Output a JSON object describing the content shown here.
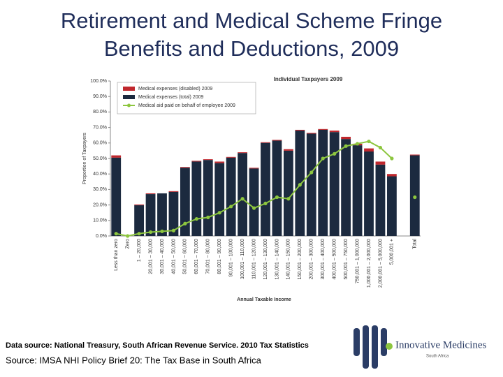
{
  "slide": {
    "title_lines": [
      "Retirement and Medical Scheme Fringe",
      "Benefits and Deductions, 2009"
    ],
    "data_source": "Data source: National Treasury, South African Revenue Service. 2010 Tax Statistics",
    "source": "Source: IMSA NHI Policy Brief 20: The Tax Base in South Africa",
    "logo": {
      "name": "Innovative Medicines",
      "region": "South Africa"
    }
  },
  "chart_data": {
    "type": "bar",
    "title": "Individual Taxpayers 2009",
    "x_label": "Annual Taxable Income",
    "y_label": "Proportion of Taxpayers",
    "categories": [
      "Less than zero",
      "Zero",
      "1 – 20,000",
      "20,001 – 30,000",
      "30,001 – 40,000",
      "40,001 – 50,000",
      "50,001 – 60,000",
      "60,001 – 70,000",
      "70,001 – 80,000",
      "80,001 – 90,000",
      "90,001 – 100,000",
      "100,001 – 110,000",
      "110,001 – 120,000",
      "120,001 – 130,000",
      "130,001 – 140,000",
      "140,001 – 150,000",
      "150,001 – 200,000",
      "200,001 – 300,000",
      "300,001 – 400,000",
      "400,001 – 500,000",
      "500,001 – 750,000",
      "750,001 – 1,000,000",
      "1,000,001 – 2,000,000",
      "2,000,001 – 5,000,000",
      "5,000,001 +",
      null,
      "Total"
    ],
    "series": [
      {
        "name": "Medical expenses (disabled) 2009",
        "color": "#c0272d",
        "kind": "bar",
        "stack_on": 1,
        "values": [
          1.5,
          0,
          0.5,
          0.5,
          0,
          0.5,
          0.5,
          0.5,
          0.5,
          1,
          0.5,
          0.5,
          0.5,
          0.5,
          0.5,
          1,
          0.5,
          0.5,
          0.5,
          1,
          1.5,
          1,
          2,
          2,
          1.5,
          null,
          0.5
        ]
      },
      {
        "name": "Medical expenses (total) 2009",
        "color": "#1c2a3f",
        "kind": "bar",
        "values": [
          50.5,
          0,
          19.8,
          27,
          27.5,
          28.4,
          44,
          48,
          49,
          47,
          50.5,
          53.5,
          43.5,
          60,
          61.5,
          55,
          68,
          66,
          68.5,
          67,
          62.5,
          58.5,
          54.5,
          46,
          38.5,
          null,
          52
        ]
      },
      {
        "name": "Medical aid paid on behalf of employee 2009",
        "color": "#8dc63f",
        "kind": "line",
        "values": [
          1.5,
          0,
          1.5,
          2.5,
          3,
          3.5,
          8,
          11,
          12,
          15,
          19,
          24,
          18,
          21,
          25,
          24,
          33,
          41,
          50,
          53,
          58,
          59.5,
          61,
          57,
          50,
          null,
          25
        ]
      }
    ],
    "ylim": [
      0,
      100
    ],
    "yticks": [
      {
        "value": 0,
        "label": "0.0%"
      },
      {
        "value": 10,
        "label": "10.0%"
      },
      {
        "value": 20,
        "label": "20.0%"
      },
      {
        "value": 30,
        "label": "30.0%"
      },
      {
        "value": 40,
        "label": "40.0%"
      },
      {
        "value": 50,
        "label": "50.0%"
      },
      {
        "value": 60,
        "label": "60.0%"
      },
      {
        "value": 70,
        "label": "70.0%"
      },
      {
        "value": 80,
        "label": "80.0%"
      },
      {
        "value": 90,
        "label": "90.0%"
      },
      {
        "value": 100,
        "label": "100.0%"
      }
    ],
    "legend": "top-left"
  }
}
